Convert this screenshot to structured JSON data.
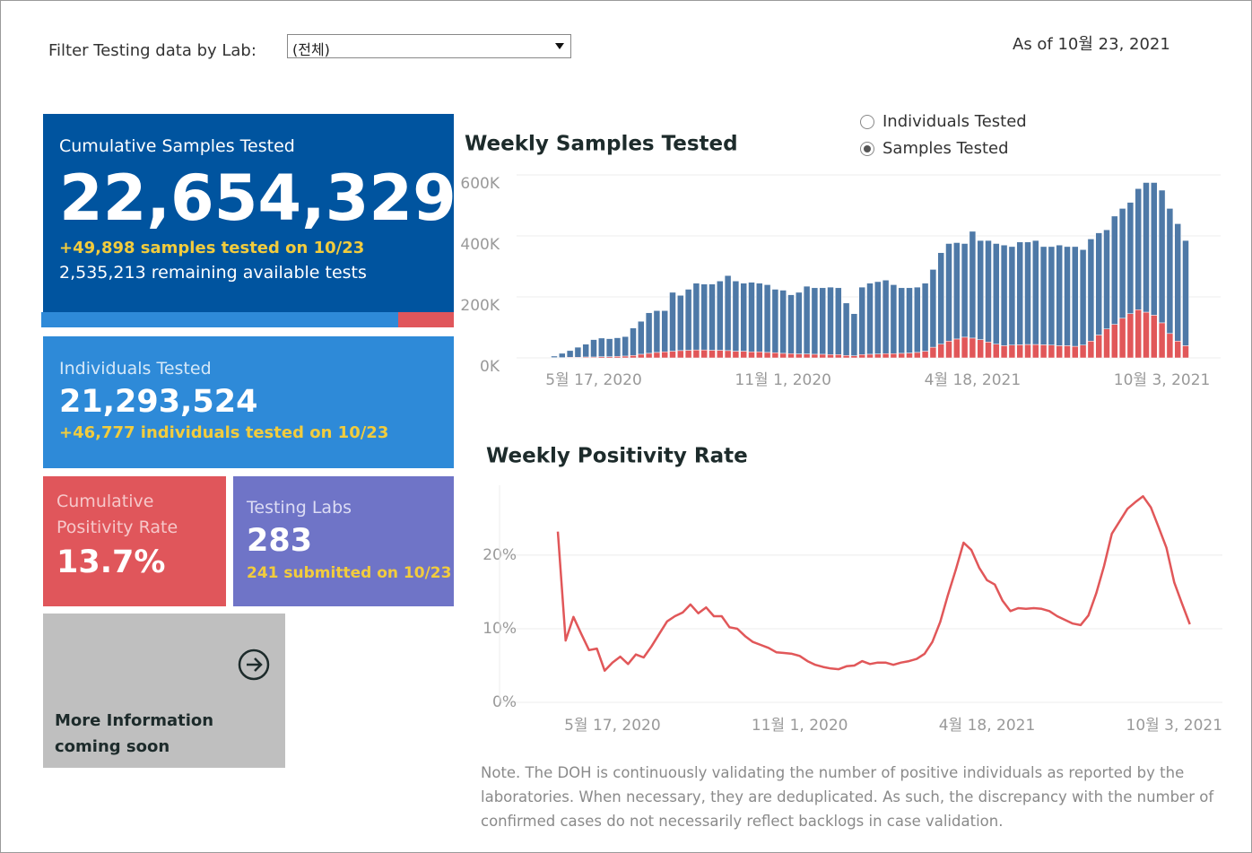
{
  "filter": {
    "label": "Filter Testing data by Lab:",
    "value": "(전체)"
  },
  "as_of": "As of 10월 23, 2021",
  "tiles": {
    "cumulative_samples": {
      "title": "Cumulative Samples Tested",
      "value": "22,654,329",
      "today": "+49,898 samples tested on 10/23",
      "remaining": "2,535,213 remaining available tests"
    },
    "individuals": {
      "title": "Individuals Tested",
      "value": "21,293,524",
      "today": "+46,777  individuals  tested on 10/23"
    },
    "positivity": {
      "title": "Cumulative Positivity Rate",
      "value": "13.7%"
    },
    "labs": {
      "title": "Testing Labs",
      "value": "283",
      "today": "241 submitted on 10/23"
    },
    "more_info": "More Information coming soon"
  },
  "toggle": {
    "options": [
      "Individuals Tested",
      "Samples Tested"
    ],
    "selected": 1
  },
  "note": "Note. The DOH is continuously validating the number of positive individuals as reported by the laboratories. When necessary, they are deduplicated. As such, the discrepancy with the number of confirmed cases do not necessarily reflect backlogs in case validation.",
  "chart_data": [
    {
      "type": "bar",
      "stacked": true,
      "title": "Weekly Samples Tested",
      "categories": [
        null,
        null,
        null,
        null,
        null,
        "5월 17, 2020",
        null,
        null,
        null,
        null,
        null,
        null,
        null,
        null,
        null,
        null,
        null,
        null,
        null,
        null,
        null,
        null,
        null,
        null,
        null,
        null,
        null,
        null,
        null,
        "11월 1, 2020",
        null,
        null,
        null,
        null,
        null,
        null,
        null,
        null,
        null,
        null,
        null,
        null,
        null,
        null,
        null,
        null,
        null,
        null,
        null,
        null,
        null,
        null,
        null,
        "4월 18, 2021",
        null,
        null,
        null,
        null,
        null,
        null,
        null,
        null,
        null,
        null,
        null,
        null,
        null,
        null,
        null,
        null,
        null,
        null,
        null,
        null,
        null,
        null,
        null,
        "10월 3, 2021",
        null,
        null,
        null
      ],
      "series": [
        {
          "color": "#e15759",
          "values": [
            1000,
            1000,
            2000,
            2000,
            3000,
            3000,
            4000,
            4000,
            5000,
            6000,
            8000,
            12000,
            15000,
            18000,
            20000,
            22000,
            24000,
            25000,
            26000,
            26000,
            25000,
            25000,
            24000,
            22000,
            22000,
            20000,
            20000,
            18000,
            17000,
            15000,
            14000,
            13000,
            13000,
            12000,
            12000,
            11000,
            11000,
            8000,
            7000,
            11000,
            12000,
            13000,
            14000,
            14000,
            15000,
            16000,
            18000,
            22000,
            35000,
            45000,
            55000,
            62000,
            68000,
            65000,
            60000,
            52000,
            45000,
            40000,
            42000,
            43000,
            44000,
            44000,
            43000,
            42000,
            40000,
            40000,
            38000,
            42000,
            55000,
            75000,
            95000,
            110000,
            130000,
            145000,
            158000,
            150000,
            140000,
            115000,
            80000,
            55000,
            40000
          ]
        },
        {
          "color": "#4e79a7",
          "values": [
            5000,
            14000,
            22000,
            33000,
            42000,
            57000,
            61000,
            59000,
            61000,
            64000,
            90000,
            108000,
            133000,
            137000,
            135000,
            193000,
            181000,
            200000,
            219000,
            216000,
            217000,
            227000,
            246000,
            230000,
            223000,
            228000,
            225000,
            222000,
            208000,
            207000,
            193000,
            202000,
            222000,
            218000,
            218000,
            221000,
            219000,
            172000,
            138000,
            221000,
            233000,
            237000,
            241000,
            226000,
            215000,
            214000,
            214000,
            223000,
            255000,
            300000,
            320000,
            316000,
            307000,
            350000,
            325000,
            333000,
            330000,
            330000,
            323000,
            337000,
            336000,
            341000,
            322000,
            323000,
            330000,
            325000,
            327000,
            313000,
            335000,
            335000,
            325000,
            355000,
            360000,
            365000,
            397000,
            425000,
            435000,
            435000,
            410000,
            385000,
            345000
          ]
        }
      ],
      "ylim": [
        0,
        600000
      ],
      "yticks": [
        {
          "value": 0,
          "label": "0K"
        },
        {
          "value": 200000,
          "label": "200K"
        },
        {
          "value": 400000,
          "label": "400K"
        },
        {
          "value": 600000,
          "label": "600K"
        }
      ],
      "grid": true
    },
    {
      "type": "line",
      "title": "Weekly Positivity Rate",
      "categories": [
        null,
        null,
        null,
        null,
        null,
        null,
        null,
        "5월 17, 2020",
        null,
        null,
        null,
        null,
        null,
        null,
        null,
        null,
        null,
        null,
        null,
        null,
        null,
        null,
        null,
        null,
        null,
        null,
        null,
        null,
        null,
        null,
        null,
        "11월 1, 2020",
        null,
        null,
        null,
        null,
        null,
        null,
        null,
        null,
        null,
        null,
        null,
        null,
        null,
        null,
        null,
        null,
        null,
        null,
        null,
        null,
        null,
        null,
        null,
        "4월 18, 2021",
        null,
        null,
        null,
        null,
        null,
        null,
        null,
        null,
        null,
        null,
        null,
        null,
        null,
        null,
        null,
        null,
        null,
        null,
        null,
        null,
        null,
        null,
        null,
        "10월 3, 2021",
        null,
        null
      ],
      "color": "#e15759",
      "values": [
        23.2,
        8.4,
        11.6,
        9.3,
        7.1,
        7.3,
        4.3,
        5.4,
        6.2,
        5.2,
        6.5,
        6.1,
        7.6,
        9.3,
        11.0,
        11.7,
        12.2,
        13.3,
        12.1,
        12.9,
        11.7,
        11.7,
        10.2,
        10.0,
        9.0,
        8.2,
        7.8,
        7.4,
        6.8,
        6.7,
        6.6,
        6.3,
        5.6,
        5.1,
        4.8,
        4.6,
        4.5,
        4.9,
        5.0,
        5.6,
        5.2,
        5.4,
        5.4,
        5.1,
        5.4,
        5.6,
        5.9,
        6.6,
        8.2,
        10.9,
        14.6,
        18.0,
        21.7,
        20.7,
        18.3,
        16.6,
        16.0,
        13.8,
        12.4,
        12.8,
        12.7,
        12.8,
        12.7,
        12.4,
        11.7,
        11.2,
        10.7,
        10.5,
        11.8,
        14.8,
        18.5,
        22.9,
        24.6,
        26.3,
        27.2,
        28.0,
        26.5,
        23.8,
        21.0,
        16.3,
        13.4,
        10.6
      ],
      "ylim": [
        0,
        29.5
      ],
      "yticks": [
        {
          "value": 0,
          "label": "0%"
        },
        {
          "value": 10,
          "label": "10%"
        },
        {
          "value": 20,
          "label": "20%"
        }
      ],
      "grid": true
    }
  ]
}
